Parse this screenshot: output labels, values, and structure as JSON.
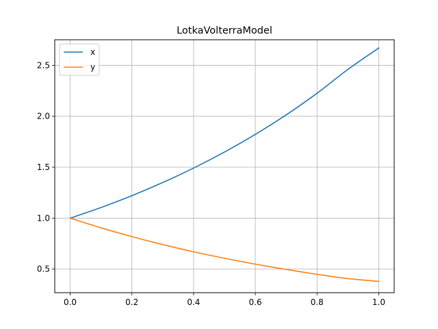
{
  "chart_data": {
    "type": "line",
    "title": "LotkaVolterraModel",
    "xlabel": "",
    "ylabel": "",
    "xlim": [
      -0.05,
      1.05
    ],
    "ylim": [
      0.269,
      2.751
    ],
    "grid": true,
    "legend_position": "upper-left",
    "x_ticks": [
      {
        "value": 0.0,
        "label": "0.0"
      },
      {
        "value": 0.2,
        "label": "0.2"
      },
      {
        "value": 0.4,
        "label": "0.4"
      },
      {
        "value": 0.6,
        "label": "0.6"
      },
      {
        "value": 0.8,
        "label": "0.8"
      },
      {
        "value": 1.0,
        "label": "1.0"
      }
    ],
    "y_ticks": [
      {
        "value": 0.5,
        "label": "0.5"
      },
      {
        "value": 1.0,
        "label": "1.0"
      },
      {
        "value": 1.5,
        "label": "1.5"
      },
      {
        "value": 2.0,
        "label": "2.0"
      },
      {
        "value": 2.5,
        "label": "2.5"
      }
    ],
    "x": [
      0.0,
      0.1,
      0.2,
      0.3,
      0.4,
      0.5,
      0.6,
      0.7,
      0.8,
      0.9,
      1.0
    ],
    "series": [
      {
        "name": "x",
        "color": "#1f77b4",
        "values": [
          1.0,
          1.105,
          1.221,
          1.35,
          1.492,
          1.649,
          1.822,
          2.014,
          2.226,
          2.46,
          2.67
        ]
      },
      {
        "name": "y",
        "color": "#ff7f0e",
        "values": [
          1.0,
          0.905,
          0.819,
          0.741,
          0.67,
          0.607,
          0.549,
          0.497,
          0.449,
          0.407,
          0.38
        ]
      }
    ]
  }
}
